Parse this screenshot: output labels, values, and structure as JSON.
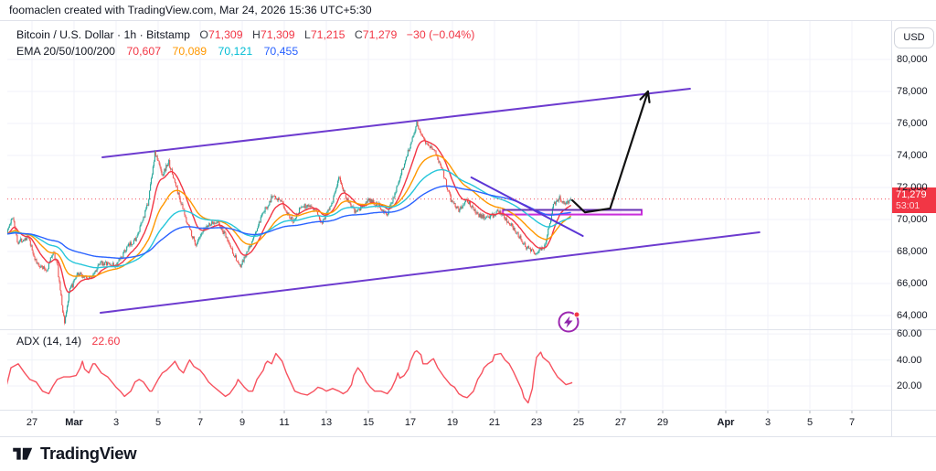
{
  "attribution": "foomaclen created with TradingView.com, Mar 24, 2026 15:36 UTC+5:30",
  "legend": {
    "title": "Bitcoin / U.S. Dollar · 1h · Bitstamp",
    "ohlc": {
      "o_label": "O",
      "o": "71,309",
      "h_label": "H",
      "h": "71,309",
      "l_label": "L",
      "l": "71,215",
      "c_label": "C",
      "c": "71,279",
      "change": "−30 (−0.04%)"
    },
    "ema": {
      "label": "EMA 20/50/100/200",
      "values": [
        "70,607",
        "70,089",
        "70,121",
        "70,455"
      ],
      "colors": [
        "#f23645",
        "#ff9800",
        "#00bcd4",
        "#2962ff"
      ]
    }
  },
  "adx": {
    "label": "ADX (14, 14)",
    "value": "22.60"
  },
  "price_axis": {
    "currency": "USD",
    "labels": [
      {
        "text": "80,000",
        "price": 80000
      },
      {
        "text": "78,000",
        "price": 78000
      },
      {
        "text": "76,000",
        "price": 76000
      },
      {
        "text": "74,000",
        "price": 74000
      },
      {
        "text": "72,000",
        "price": 72000
      },
      {
        "text": "70,000",
        "price": 70000
      },
      {
        "text": "68,000",
        "price": 68000
      },
      {
        "text": "66,000",
        "price": 66000
      },
      {
        "text": "64,000",
        "price": 64000
      }
    ],
    "adx_labels": [
      {
        "text": "60.00",
        "value": 60
      },
      {
        "text": "40.00",
        "value": 40
      },
      {
        "text": "20.00",
        "value": 20
      }
    ],
    "badge": {
      "price_text": "71,279",
      "countdown": "53:01",
      "bg": "#f23645"
    }
  },
  "time_axis": [
    {
      "label": "27",
      "day": 1,
      "bold": false
    },
    {
      "label": "Mar",
      "day": 3,
      "bold": true
    },
    {
      "label": "3",
      "day": 5,
      "bold": false
    },
    {
      "label": "5",
      "day": 7,
      "bold": false
    },
    {
      "label": "7",
      "day": 9,
      "bold": false
    },
    {
      "label": "9",
      "day": 11,
      "bold": false
    },
    {
      "label": "11",
      "day": 13,
      "bold": false
    },
    {
      "label": "13",
      "day": 15,
      "bold": false
    },
    {
      "label": "15",
      "day": 17,
      "bold": false
    },
    {
      "label": "17",
      "day": 19,
      "bold": false
    },
    {
      "label": "19",
      "day": 21,
      "bold": false
    },
    {
      "label": "21",
      "day": 23,
      "bold": false
    },
    {
      "label": "23",
      "day": 25,
      "bold": false
    },
    {
      "label": "25",
      "day": 27,
      "bold": false
    },
    {
      "label": "27",
      "day": 29,
      "bold": false
    },
    {
      "label": "29",
      "day": 31,
      "bold": false
    },
    {
      "label": "Apr",
      "day": 34,
      "bold": true
    },
    {
      "label": "3",
      "day": 36,
      "bold": false
    },
    {
      "label": "5",
      "day": 38,
      "bold": false
    },
    {
      "label": "7",
      "day": 40,
      "bold": false
    }
  ],
  "logo": {
    "text": "TradingView"
  },
  "icons": {
    "flash": "lightning-bolt-in-circle",
    "logo_mark": "tradingview-mark"
  },
  "chart_data": {
    "type": "candlestick",
    "symbol": "Bitcoin / U.S. Dollar",
    "exchange": "Bitstamp",
    "interval": "1h",
    "ohlc": {
      "open": 71309,
      "high": 71309,
      "low": 71215,
      "close": 71279,
      "change": -30,
      "change_pct": -0.04
    },
    "last_price": 71279,
    "visible_price_range": [
      63250,
      82450
    ],
    "colors": {
      "up": "#26a69a",
      "down": "#ef5350",
      "ema20": "#f23645",
      "ema50": "#ff9800",
      "ema100": "#26c6da",
      "ema200": "#2962ff",
      "grid": "#f0f2f8",
      "adx_line": "#f7525f",
      "price_line": "#f23645",
      "axis_divider": "#e0e3eb",
      "arrow": "#111111"
    },
    "ema_periods": [
      20,
      50,
      100,
      200
    ],
    "ema_values": [
      70607,
      70089,
      70121,
      70455
    ],
    "price_waypoints": [
      [
        -0.2,
        69200
      ],
      [
        0.1,
        70200
      ],
      [
        0.3,
        68600
      ],
      [
        0.8,
        68900
      ],
      [
        1.2,
        67300
      ],
      [
        1.7,
        66800
      ],
      [
        2.0,
        68000
      ],
      [
        2.2,
        67200
      ],
      [
        2.45,
        64400
      ],
      [
        2.55,
        63600
      ],
      [
        2.8,
        65600
      ],
      [
        3.2,
        66600
      ],
      [
        3.7,
        66300
      ],
      [
        4.3,
        67300
      ],
      [
        5.0,
        67100
      ],
      [
        5.5,
        68200
      ],
      [
        6.0,
        68900
      ],
      [
        6.5,
        70900
      ],
      [
        6.85,
        74200
      ],
      [
        7.2,
        72800
      ],
      [
        7.5,
        73600
      ],
      [
        7.8,
        72300
      ],
      [
        8.3,
        70100
      ],
      [
        8.8,
        68400
      ],
      [
        9.3,
        69600
      ],
      [
        9.8,
        69900
      ],
      [
        10.3,
        68700
      ],
      [
        10.9,
        67000
      ],
      [
        11.4,
        68400
      ],
      [
        12.0,
        70400
      ],
      [
        12.5,
        71600
      ],
      [
        13.0,
        70800
      ],
      [
        13.4,
        69900
      ],
      [
        13.8,
        70800
      ],
      [
        14.3,
        70900
      ],
      [
        14.8,
        69800
      ],
      [
        15.3,
        71200
      ],
      [
        15.6,
        72600
      ],
      [
        16.0,
        71200
      ],
      [
        16.4,
        70400
      ],
      [
        17.0,
        71200
      ],
      [
        17.5,
        70900
      ],
      [
        17.9,
        70300
      ],
      [
        18.4,
        72200
      ],
      [
        18.9,
        74300
      ],
      [
        19.3,
        76000
      ],
      [
        19.7,
        74900
      ],
      [
        20.1,
        74400
      ],
      [
        20.5,
        73200
      ],
      [
        20.9,
        71300
      ],
      [
        21.3,
        70600
      ],
      [
        21.7,
        71200
      ],
      [
        22.2,
        70300
      ],
      [
        22.7,
        70100
      ],
      [
        23.2,
        70500
      ],
      [
        23.6,
        69900
      ],
      [
        24.0,
        69300
      ],
      [
        24.5,
        68300
      ],
      [
        25.0,
        67900
      ],
      [
        25.4,
        68400
      ],
      [
        25.8,
        70900
      ],
      [
        26.1,
        71400
      ],
      [
        26.35,
        70900
      ],
      [
        26.65,
        71279
      ]
    ],
    "adx_indicator": {
      "params": [
        14,
        14
      ],
      "current": 22.6
    },
    "adx_series": [
      [
        -0.2,
        21
      ],
      [
        0,
        34
      ],
      [
        0.35,
        37
      ],
      [
        0.65,
        30
      ],
      [
        0.9,
        25
      ],
      [
        1.2,
        23
      ],
      [
        1.5,
        16
      ],
      [
        1.8,
        14
      ],
      [
        2,
        20
      ],
      [
        2.2,
        25
      ],
      [
        2.5,
        27
      ],
      [
        2.8,
        27
      ],
      [
        3.1,
        28
      ],
      [
        3.3,
        34
      ],
      [
        3.4,
        39
      ],
      [
        3.5,
        33
      ],
      [
        3.7,
        30
      ],
      [
        3.9,
        37
      ],
      [
        4,
        37
      ],
      [
        4.3,
        30
      ],
      [
        4.6,
        27
      ],
      [
        4.8,
        23
      ],
      [
        5,
        19
      ],
      [
        5.2,
        16
      ],
      [
        5.4,
        12
      ],
      [
        5.7,
        16
      ],
      [
        5.9,
        23
      ],
      [
        6.1,
        25
      ],
      [
        6.3,
        23
      ],
      [
        6.6,
        16
      ],
      [
        6.7,
        16
      ],
      [
        7,
        25
      ],
      [
        7.2,
        30
      ],
      [
        7.4,
        32
      ],
      [
        7.7,
        37
      ],
      [
        7.8,
        39
      ],
      [
        8,
        33
      ],
      [
        8.2,
        30
      ],
      [
        8.4,
        37
      ],
      [
        8.5,
        40
      ],
      [
        8.7,
        35
      ],
      [
        9,
        32
      ],
      [
        9.2,
        28
      ],
      [
        9.4,
        23
      ],
      [
        9.6,
        20
      ],
      [
        9.9,
        16
      ],
      [
        10.2,
        12
      ],
      [
        10.4,
        14
      ],
      [
        10.7,
        21
      ],
      [
        10.8,
        25
      ],
      [
        10.9,
        23
      ],
      [
        11.1,
        19
      ],
      [
        11.3,
        16
      ],
      [
        11.5,
        16
      ],
      [
        11.7,
        25
      ],
      [
        12,
        32
      ],
      [
        12.1,
        37
      ],
      [
        12.2,
        39
      ],
      [
        12.4,
        37
      ],
      [
        12.6,
        45
      ],
      [
        12.9,
        39
      ],
      [
        13.1,
        30
      ],
      [
        13.3,
        23
      ],
      [
        13.5,
        16
      ],
      [
        13.8,
        14
      ],
      [
        14.1,
        13
      ],
      [
        14.4,
        16
      ],
      [
        14.6,
        19
      ],
      [
        14.8,
        18
      ],
      [
        15,
        16
      ],
      [
        15.3,
        18
      ],
      [
        15.6,
        16
      ],
      [
        15.8,
        14
      ],
      [
        16,
        16
      ],
      [
        16.2,
        21
      ],
      [
        16.3,
        28
      ],
      [
        16.5,
        34
      ],
      [
        16.7,
        30
      ],
      [
        16.9,
        23
      ],
      [
        17.1,
        19
      ],
      [
        17.3,
        16
      ],
      [
        17.6,
        16
      ],
      [
        17.9,
        14
      ],
      [
        18.1,
        18
      ],
      [
        18.3,
        25
      ],
      [
        18.4,
        30
      ],
      [
        18.5,
        26
      ],
      [
        18.7,
        28
      ],
      [
        18.9,
        33
      ],
      [
        19,
        39
      ],
      [
        19.2,
        46
      ],
      [
        19.3,
        47
      ],
      [
        19.5,
        44
      ],
      [
        19.6,
        37
      ],
      [
        19.8,
        37
      ],
      [
        20,
        40
      ],
      [
        20.1,
        41
      ],
      [
        20.3,
        34
      ],
      [
        20.6,
        27
      ],
      [
        20.8,
        23
      ],
      [
        20.9,
        21
      ],
      [
        21.1,
        19
      ],
      [
        21.3,
        14
      ],
      [
        21.5,
        12
      ],
      [
        21.7,
        11
      ],
      [
        22,
        16
      ],
      [
        22.2,
        25
      ],
      [
        22.4,
        30
      ],
      [
        22.5,
        34
      ],
      [
        22.7,
        37
      ],
      [
        22.9,
        39
      ],
      [
        23,
        44
      ],
      [
        23.3,
        45
      ],
      [
        23.5,
        40
      ],
      [
        23.7,
        37
      ],
      [
        23.9,
        31
      ],
      [
        24.1,
        24
      ],
      [
        24.3,
        17
      ],
      [
        24.4,
        11
      ],
      [
        24.6,
        7
      ],
      [
        24.8,
        18
      ],
      [
        24.9,
        32
      ],
      [
        25,
        42
      ],
      [
        25.2,
        46
      ],
      [
        25.3,
        42
      ],
      [
        25.6,
        38
      ],
      [
        25.8,
        32
      ],
      [
        26,
        27
      ],
      [
        26.2,
        24
      ],
      [
        26.4,
        21
      ],
      [
        26.6,
        22
      ],
      [
        26.7,
        22.6
      ]
    ],
    "drawings": {
      "channel_upper": {
        "type": "trendline",
        "p1": [
          4.35,
          73886
        ],
        "p2": [
          32.3,
          78171
        ],
        "color": "#6d3bcf",
        "width": 2
      },
      "channel_lower": {
        "type": "trendline",
        "p1": [
          4.26,
          64171
        ],
        "p2": [
          35.6,
          69200
        ],
        "color": "#6d3bcf",
        "width": 2
      },
      "breakdown_line": {
        "type": "trendline",
        "p1": [
          21.9,
          72629
        ],
        "p2": [
          27.2,
          68971
        ],
        "color": "#5b35d5",
        "width": 2
      },
      "support_zone": {
        "type": "rectangle",
        "d1": 23.4,
        "d2": 30.0,
        "price_top": 70600,
        "price_bottom": 70310,
        "border": "#c92ddb",
        "top_line": "#5e35b1",
        "fill": "rgba(201,45,219,0.07)"
      },
      "projection_arrow": {
        "type": "arrow",
        "points": [
          [
            26.7,
            71200
          ],
          [
            27.3,
            70450
          ],
          [
            28.5,
            70690
          ],
          [
            30.3,
            78000
          ]
        ],
        "color": "#111111",
        "width": 2.2
      }
    }
  }
}
